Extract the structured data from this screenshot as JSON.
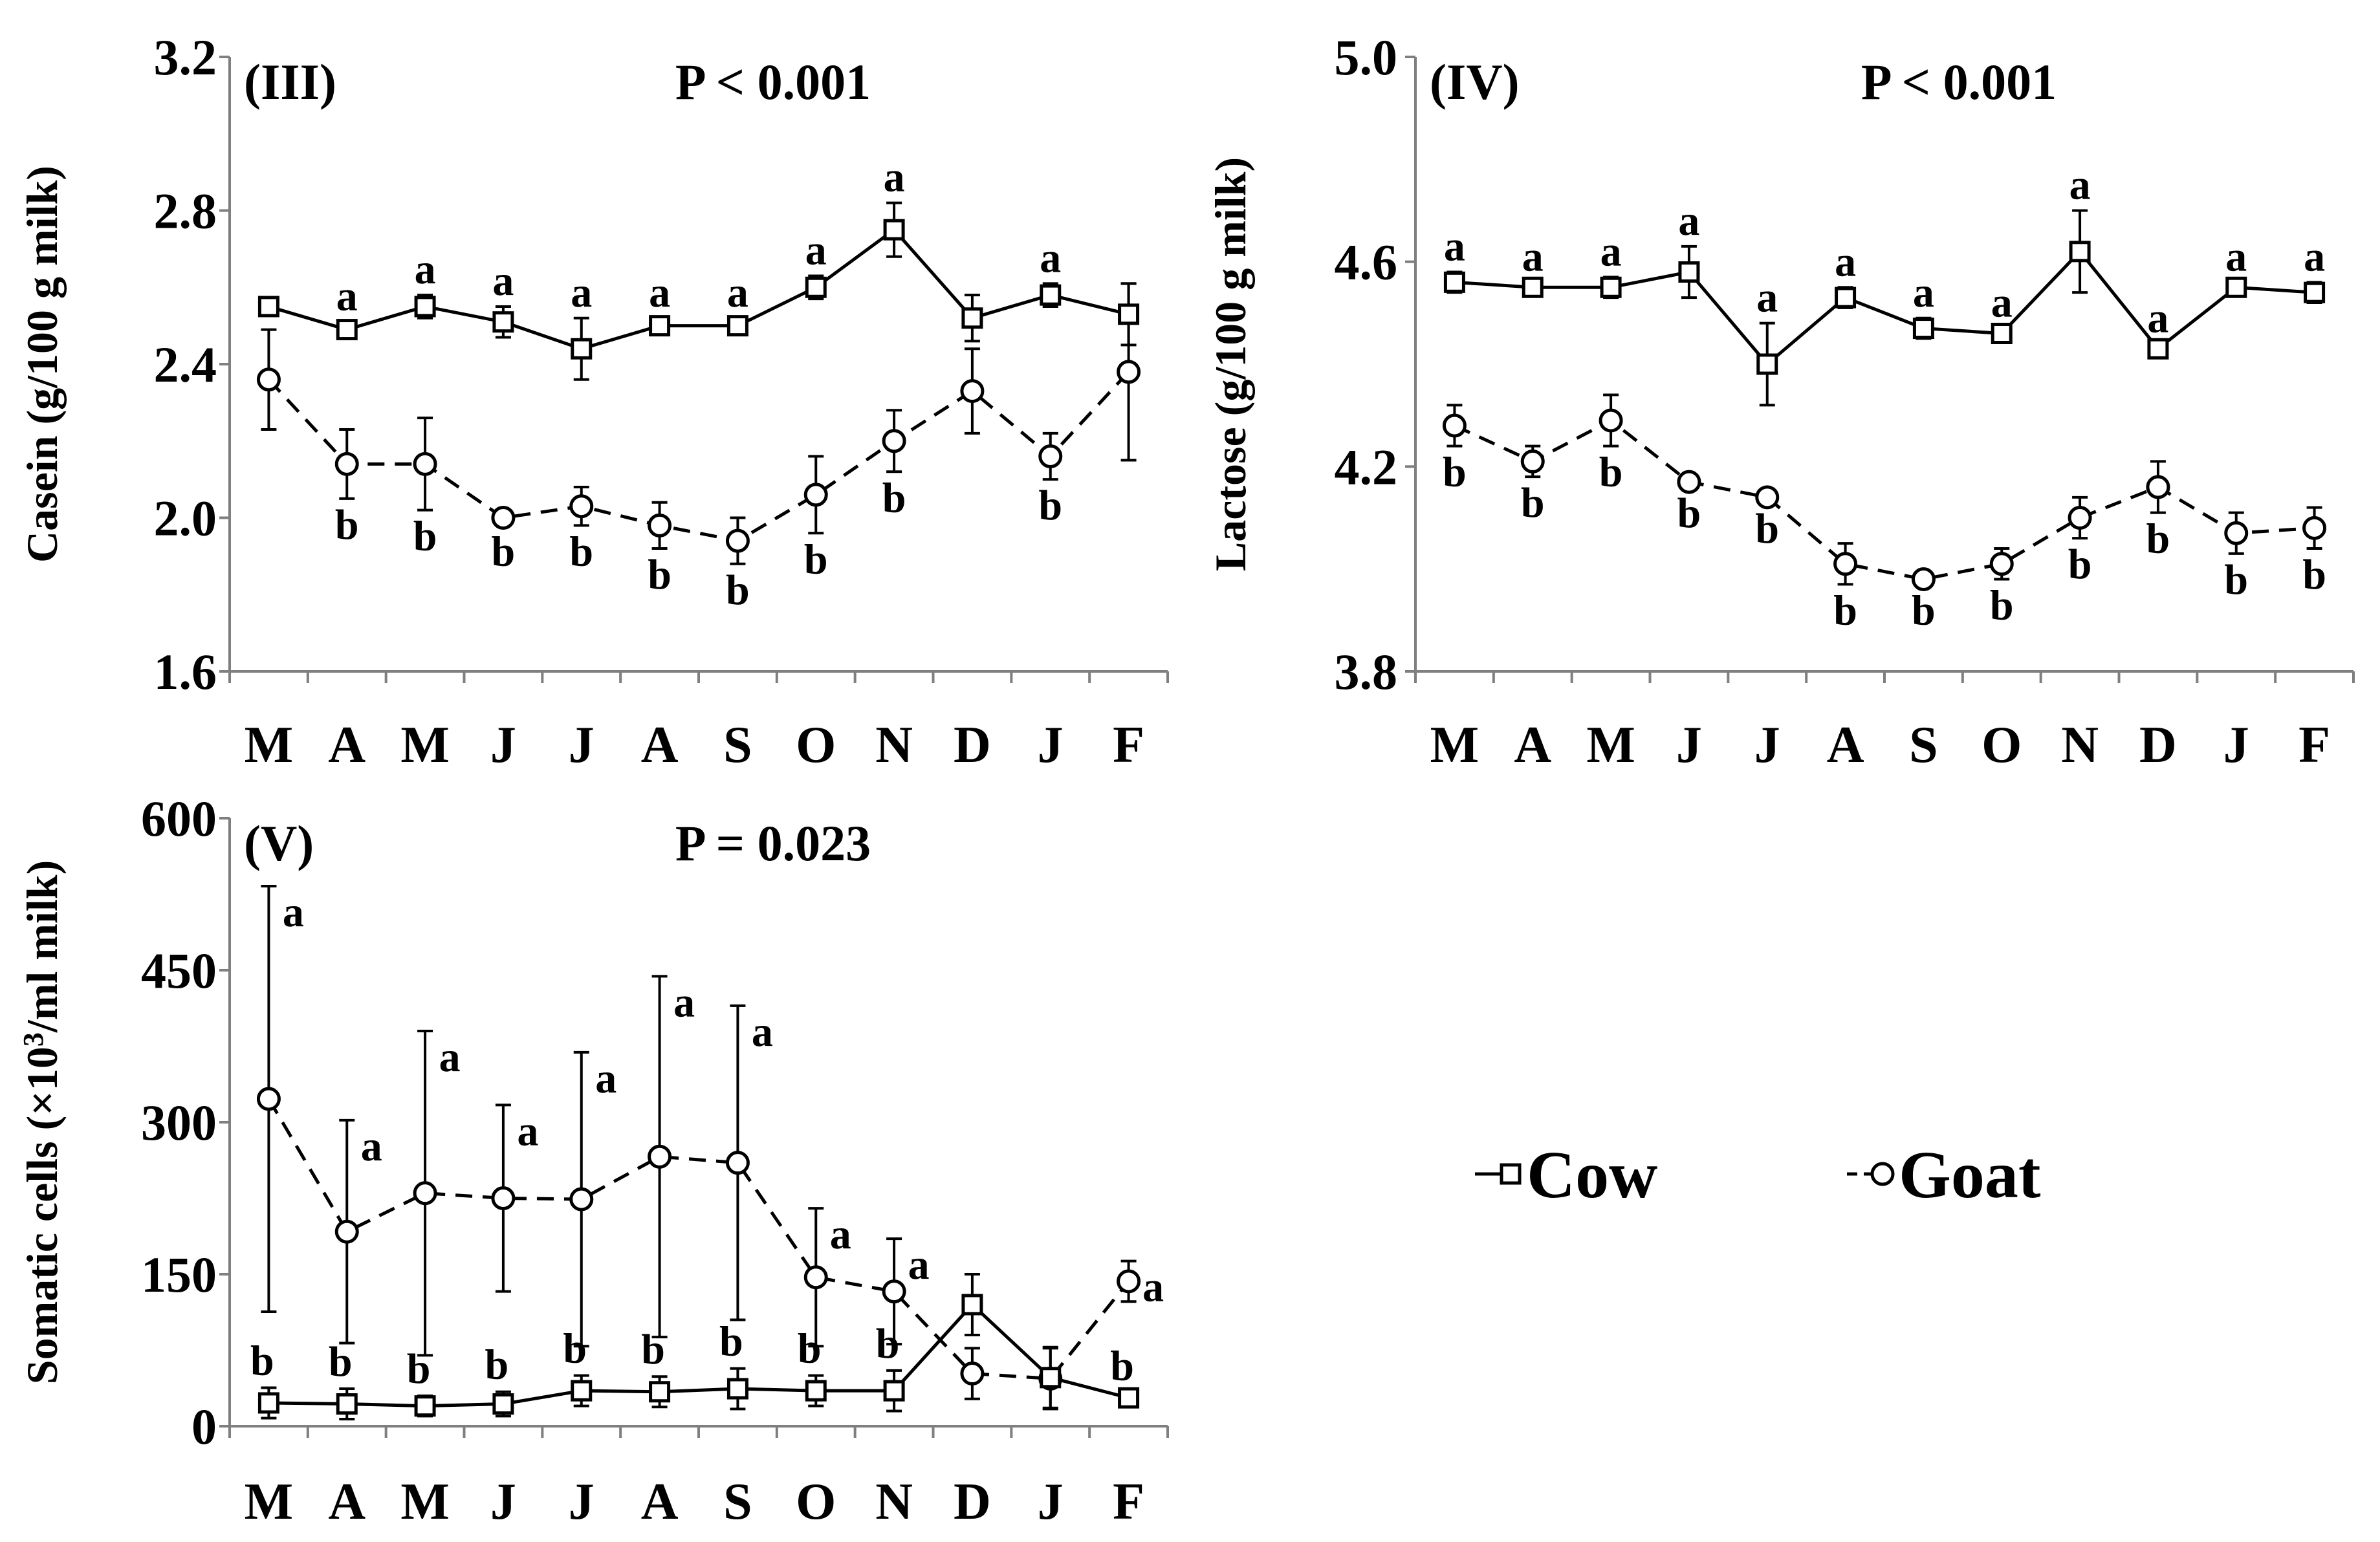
{
  "chart_data": [
    {
      "type": "line",
      "panel_label": "(III)",
      "title": "P < 0.001",
      "ylabel": "Casein (g/100 g milk)",
      "xlabel": "",
      "categories": [
        "M",
        "A",
        "M",
        "J",
        "J",
        "A",
        "S",
        "O",
        "N",
        "D",
        "J",
        "F"
      ],
      "ylim": [
        1.6,
        3.2
      ],
      "yticks": [
        "1.6",
        "2.0",
        "2.4",
        "2.8",
        "3.2"
      ],
      "series": [
        {
          "name": "Cow",
          "marker": "square",
          "line": "solid",
          "values": [
            2.55,
            2.49,
            2.55,
            2.51,
            2.44,
            2.5,
            2.5,
            2.6,
            2.75,
            2.52,
            2.58,
            2.53
          ],
          "errors": [
            0.02,
            0.02,
            0.03,
            0.04,
            0.08,
            0.02,
            0.02,
            0.03,
            0.07,
            0.06,
            0.03,
            0.08
          ],
          "letters": [
            "",
            "a",
            "a",
            "a",
            "a",
            "a",
            "a",
            "a",
            "a",
            "",
            "a",
            ""
          ]
        },
        {
          "name": "Goat",
          "marker": "circle",
          "line": "dashed",
          "values": [
            2.36,
            2.14,
            2.14,
            2.0,
            2.03,
            1.98,
            1.94,
            2.06,
            2.2,
            2.33,
            2.16,
            2.38
          ],
          "errors": [
            0.13,
            0.09,
            0.12,
            0.02,
            0.05,
            0.06,
            0.06,
            0.1,
            0.08,
            0.11,
            0.06,
            0.23
          ],
          "letters": [
            "",
            "b",
            "b",
            "b",
            "b",
            "b",
            "b",
            "b",
            "b",
            "",
            "b",
            ""
          ]
        }
      ]
    },
    {
      "type": "line",
      "panel_label": "(IV)",
      "title": "P < 0.001",
      "ylabel": "Lactose (g/100 g milk)",
      "xlabel": "",
      "categories": [
        "M",
        "A",
        "M",
        "J",
        "J",
        "A",
        "S",
        "O",
        "N",
        "D",
        "J",
        "F"
      ],
      "ylim": [
        3.8,
        5.0
      ],
      "yticks": [
        "3.8",
        "4.2",
        "4.6",
        "5.0"
      ],
      "series": [
        {
          "name": "Cow",
          "marker": "square",
          "line": "solid",
          "values": [
            4.56,
            4.55,
            4.55,
            4.58,
            4.4,
            4.53,
            4.47,
            4.46,
            4.62,
            4.43,
            4.55,
            4.54
          ],
          "errors": [
            0.02,
            0.01,
            0.02,
            0.05,
            0.08,
            0.02,
            0.02,
            0.01,
            0.08,
            0.01,
            0.01,
            0.02
          ],
          "letters": [
            "a",
            "a",
            "a",
            "a",
            "a",
            "a",
            "a",
            "a",
            "a",
            "a",
            "a",
            "a"
          ]
        },
        {
          "name": "Goat",
          "marker": "circle",
          "line": "dashed",
          "values": [
            4.28,
            4.21,
            4.29,
            4.17,
            4.14,
            4.01,
            3.98,
            4.01,
            4.1,
            4.16,
            4.07,
            4.08
          ],
          "errors": [
            0.04,
            0.03,
            0.05,
            0.01,
            0.01,
            0.04,
            0.01,
            0.03,
            0.04,
            0.05,
            0.04,
            0.04
          ],
          "letters": [
            "b",
            "b",
            "b",
            "b",
            "b",
            "b",
            "b",
            "b",
            "b",
            "b",
            "b",
            "b"
          ]
        }
      ]
    },
    {
      "type": "line",
      "panel_label": "(V)",
      "title": "P = 0.023",
      "ylabel_main": "Somatic cells (×10",
      "ylabel_sup": "3",
      "ylabel_end": "/ml milk)",
      "xlabel": "",
      "categories": [
        "M",
        "A",
        "M",
        "J",
        "J",
        "A",
        "S",
        "O",
        "N",
        "D",
        "J",
        "F"
      ],
      "ylim": [
        0,
        600
      ],
      "yticks": [
        "0",
        "150",
        "300",
        "450",
        "600"
      ],
      "series": [
        {
          "name": "Cow",
          "marker": "square",
          "line": "solid",
          "values": [
            23,
            22,
            20,
            22,
            35,
            34,
            37,
            35,
            35,
            120,
            48,
            28
          ],
          "errors": [
            15,
            15,
            10,
            12,
            15,
            15,
            20,
            15,
            20,
            30,
            30,
            5
          ],
          "letters": [
            "b",
            "b",
            "b",
            "b",
            "b",
            "b",
            "b",
            "b",
            "b",
            "",
            "",
            "b"
          ]
        },
        {
          "name": "Goat",
          "marker": "circle",
          "line": "dashed",
          "values": [
            323,
            192,
            230,
            225,
            224,
            266,
            260,
            147,
            133,
            52,
            47,
            143
          ],
          "errors": [
            210,
            110,
            160,
            92,
            145,
            178,
            155,
            68,
            52,
            25,
            30,
            20
          ],
          "letters": [
            "a",
            "a",
            "a",
            "a",
            "a",
            "a",
            "a",
            "a",
            "a",
            "",
            "",
            "a"
          ]
        }
      ]
    }
  ],
  "legend": {
    "items": [
      {
        "label": "Cow",
        "marker": "square",
        "line": "solid"
      },
      {
        "label": "Goat",
        "marker": "circle",
        "line": "dashed"
      }
    ]
  }
}
